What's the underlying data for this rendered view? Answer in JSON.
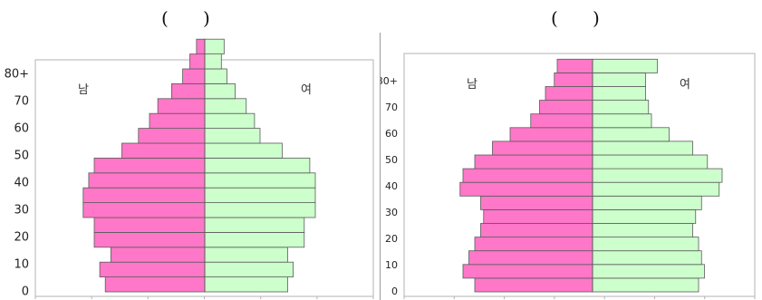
{
  "captions": {
    "left": "(      )",
    "right": "(      )"
  },
  "colors": {
    "male": "#ff77c8",
    "female": "#ccffcc",
    "outline": "#5a5a5a",
    "frame": "#b3b3b3"
  },
  "chart_data": [
    {
      "type": "bar",
      "orientation": "horizontal-pyramid",
      "categories": [
        "0",
        "5",
        "10",
        "15",
        "20",
        "25",
        "30",
        "35",
        "40",
        "45",
        "50",
        "55",
        "60",
        "65",
        "70",
        "75",
        "80+"
      ],
      "ytick_labels": [
        "0",
        "10",
        "20",
        "30",
        "40",
        "50",
        "60",
        "70",
        "80+"
      ],
      "series": [
        {
          "name": "남",
          "values": [
            1.8,
            1.9,
            1.7,
            2.0,
            2.0,
            2.2,
            2.2,
            2.1,
            2.0,
            1.5,
            1.2,
            1.0,
            0.85,
            0.6,
            0.4,
            0.27,
            0.15
          ]
        },
        {
          "name": "여",
          "values": [
            1.5,
            1.6,
            1.5,
            1.8,
            1.8,
            2.0,
            2.0,
            2.0,
            1.9,
            1.4,
            1.0,
            0.9,
            0.75,
            0.55,
            0.4,
            0.3,
            0.35
          ]
        }
      ]
    },
    {
      "type": "bar",
      "orientation": "horizontal-pyramid",
      "categories": [
        "0",
        "5",
        "10",
        "15",
        "20",
        "25",
        "30",
        "35",
        "40",
        "45",
        "50",
        "55",
        "60",
        "65",
        "70",
        "75",
        "80+"
      ],
      "ytick_labels": [
        "0",
        "10",
        "20",
        "30",
        "40",
        "50",
        "60",
        "70",
        "80+"
      ],
      "series": [
        {
          "name": "남",
          "values": [
            2.0,
            2.2,
            2.1,
            2.0,
            1.9,
            1.85,
            1.9,
            2.25,
            2.2,
            2.0,
            1.7,
            1.4,
            1.05,
            0.9,
            0.8,
            0.65,
            0.6
          ]
        },
        {
          "name": "여",
          "values": [
            1.8,
            1.9,
            1.85,
            1.8,
            1.7,
            1.75,
            1.85,
            2.15,
            2.2,
            1.95,
            1.7,
            1.3,
            1.0,
            0.95,
            0.9,
            0.9,
            1.1
          ]
        }
      ]
    }
  ]
}
